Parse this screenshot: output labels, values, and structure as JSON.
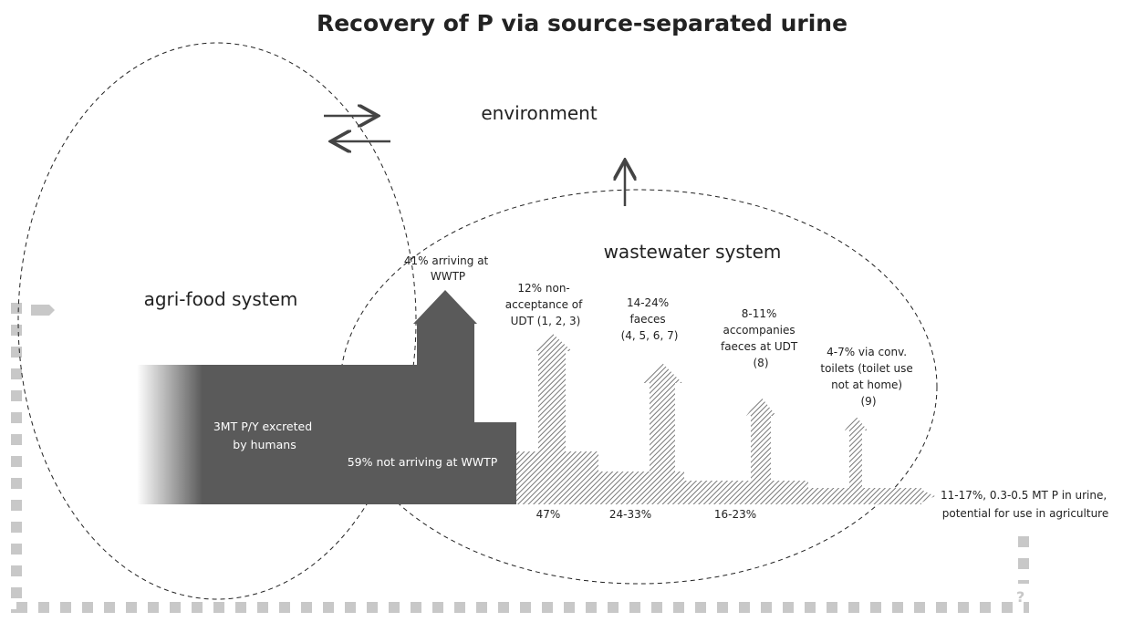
{
  "title": "Recovery of P via source-separated urine",
  "regions": {
    "agri_food": "agri-food system",
    "wastewater": "wastewater system",
    "environment": "environment"
  },
  "source": [
    "3MT P/Y excreted",
    "by humans"
  ],
  "not_arriving": "59% not  arriving at WWTP",
  "flows": [
    {
      "lines": [
        "41% arriving at",
        "WWTP"
      ]
    },
    {
      "lines": [
        "12% non-",
        "acceptance of",
        "UDT (1, 2, 3)"
      ]
    },
    {
      "lines": [
        "14-24%",
        "faeces",
        "(4, 5, 6, 7)"
      ]
    },
    {
      "lines": [
        "8-11%",
        "accompanies",
        "faeces at UDT",
        "(8)"
      ]
    },
    {
      "lines": [
        "4-7% via conv.",
        "toilets (toilet use",
        "not at home)",
        "(9)"
      ]
    }
  ],
  "shares": [
    "47%",
    "24-33%",
    "16-23%"
  ],
  "output": [
    "11-17%, 0.3-0.5 MT P in urine,",
    "potential for use in agriculture"
  ],
  "unknown": "?"
}
